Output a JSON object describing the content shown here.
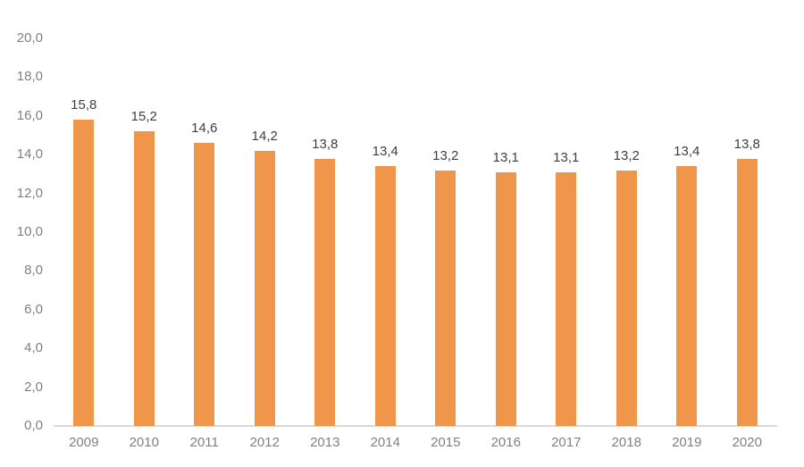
{
  "chart_data": {
    "type": "bar",
    "title": "",
    "xlabel": "",
    "ylabel": "",
    "categories": [
      "2009",
      "2010",
      "2011",
      "2012",
      "2013",
      "2014",
      "2015",
      "2016",
      "2017",
      "2018",
      "2019",
      "2020"
    ],
    "values": [
      15.8,
      15.2,
      14.6,
      14.2,
      13.8,
      13.4,
      13.2,
      13.1,
      13.1,
      13.2,
      13.4,
      13.8
    ],
    "data_labels": [
      "15,8",
      "15,2",
      "14,6",
      "14,2",
      "13,8",
      "13,4",
      "13,2",
      "13,1",
      "13,1",
      "13,2",
      "13,4",
      "13,8"
    ],
    "ylim": [
      0,
      20
    ],
    "ytick_step": 2,
    "ytick_labels": [
      "0,0",
      "2,0",
      "4,0",
      "6,0",
      "8,0",
      "10,0",
      "12,0",
      "14,0",
      "16,0",
      "18,0",
      "20,0"
    ],
    "grid": false,
    "legend": false,
    "colors": {
      "bar": "#F0964B",
      "axis_line": "#D9D9D9",
      "tick_label": "#808080",
      "data_label": "#404040",
      "background": "#FFFFFF"
    }
  }
}
